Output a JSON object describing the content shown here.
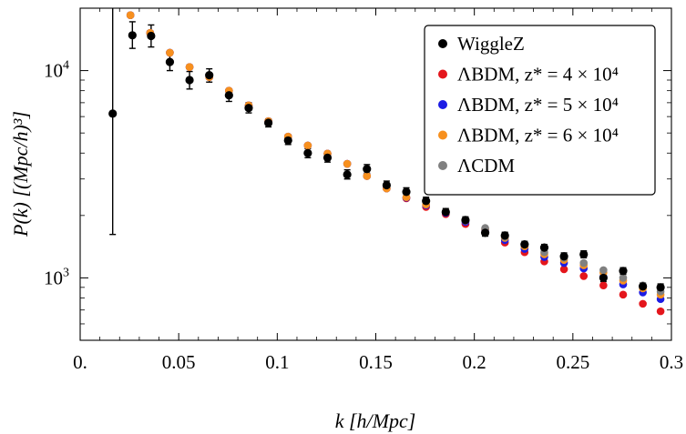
{
  "chart_data": {
    "type": "scatter",
    "xlabel": "k [h/Mpc]",
    "ylabel": "P(k) [(Mpc/h)³]",
    "y_scale": "log",
    "xlim": [
      0,
      0.3
    ],
    "ylim": [
      500,
      20000
    ],
    "grid": false,
    "legend_position": "top-right",
    "x_ticks": [
      {
        "value": 0,
        "label": "0."
      },
      {
        "value": 0.05,
        "label": "0.05"
      },
      {
        "value": 0.1,
        "label": "0.1"
      },
      {
        "value": 0.15,
        "label": "0.15"
      },
      {
        "value": 0.2,
        "label": "0.2"
      },
      {
        "value": 0.25,
        "label": "0.25"
      },
      {
        "value": 0.3,
        "label": "0.3"
      }
    ],
    "y_major_ticks": [
      {
        "value": 1000,
        "base": "10",
        "exp": "3"
      },
      {
        "value": 10000,
        "base": "10",
        "exp": "4"
      }
    ],
    "y_minor_ticks": [
      500,
      600,
      700,
      800,
      900,
      2000,
      3000,
      4000,
      5000,
      6000,
      7000,
      8000,
      9000
    ],
    "series": [
      {
        "name": "WiggleZ",
        "color": "#000000",
        "points": [
          {
            "x": 0.0165,
            "y": 6200,
            "ylo": 1620,
            "yhi": 20000
          },
          {
            "x": 0.0265,
            "y": 14800,
            "ylo": 12800,
            "yhi": 17200
          },
          {
            "x": 0.036,
            "y": 14700,
            "ylo": 13000,
            "yhi": 16600
          },
          {
            "x": 0.0455,
            "y": 11000,
            "ylo": 10000,
            "yhi": 12000
          },
          {
            "x": 0.0555,
            "y": 9000,
            "ylo": 8150,
            "yhi": 9900
          },
          {
            "x": 0.0655,
            "y": 9500,
            "ylo": 8800,
            "yhi": 10200
          },
          {
            "x": 0.0755,
            "y": 7600,
            "ylo": 7100,
            "yhi": 8100
          },
          {
            "x": 0.0855,
            "y": 6600,
            "ylo": 6250,
            "yhi": 7000
          },
          {
            "x": 0.0955,
            "y": 5600,
            "ylo": 5350,
            "yhi": 5850
          },
          {
            "x": 0.1055,
            "y": 4600,
            "ylo": 4400,
            "yhi": 4850
          },
          {
            "x": 0.1155,
            "y": 4000,
            "ylo": 3800,
            "yhi": 4200
          },
          {
            "x": 0.1255,
            "y": 3800,
            "ylo": 3620,
            "yhi": 3980
          },
          {
            "x": 0.1355,
            "y": 3150,
            "ylo": 3000,
            "yhi": 3320
          },
          {
            "x": 0.1455,
            "y": 3350,
            "ylo": 3200,
            "yhi": 3520
          },
          {
            "x": 0.1555,
            "y": 2800,
            "ylo": 2680,
            "yhi": 2930
          },
          {
            "x": 0.1655,
            "y": 2600,
            "ylo": 2490,
            "yhi": 2720
          },
          {
            "x": 0.1755,
            "y": 2350,
            "ylo": 2250,
            "yhi": 2450
          },
          {
            "x": 0.1855,
            "y": 2080,
            "ylo": 2000,
            "yhi": 2160
          },
          {
            "x": 0.1955,
            "y": 1900,
            "ylo": 1830,
            "yhi": 1970
          },
          {
            "x": 0.2055,
            "y": 1650,
            "ylo": 1590,
            "yhi": 1710
          },
          {
            "x": 0.2155,
            "y": 1600,
            "ylo": 1540,
            "yhi": 1660
          },
          {
            "x": 0.2255,
            "y": 1450,
            "ylo": 1400,
            "yhi": 1500
          },
          {
            "x": 0.2355,
            "y": 1400,
            "ylo": 1350,
            "yhi": 1450
          },
          {
            "x": 0.2455,
            "y": 1270,
            "ylo": 1220,
            "yhi": 1320
          },
          {
            "x": 0.2555,
            "y": 1300,
            "ylo": 1250,
            "yhi": 1350
          },
          {
            "x": 0.2655,
            "y": 1000,
            "ylo": 960,
            "yhi": 1040
          },
          {
            "x": 0.2755,
            "y": 1080,
            "ylo": 1040,
            "yhi": 1120
          },
          {
            "x": 0.2855,
            "y": 910,
            "ylo": 875,
            "yhi": 945
          },
          {
            "x": 0.2945,
            "y": 900,
            "ylo": 865,
            "yhi": 935
          }
        ]
      },
      {
        "name": "ΛBDM, z* = 4 × 10⁴",
        "color": "#e4161c",
        "x": [
          0.0255,
          0.0355,
          0.0455,
          0.0555,
          0.0655,
          0.0755,
          0.0855,
          0.0955,
          0.1055,
          0.1155,
          0.1255,
          0.1355,
          0.1455,
          0.1555,
          0.1655,
          0.1755,
          0.1855,
          0.1955,
          0.2055,
          0.2155,
          0.2255,
          0.2355,
          0.2455,
          0.2555,
          0.2655,
          0.2755,
          0.2855,
          0.2945
        ],
        "y": [
          18500,
          15200,
          12200,
          10400,
          9300,
          8000,
          6800,
          5700,
          4800,
          4350,
          3980,
          3550,
          3100,
          2700,
          2420,
          2200,
          2030,
          1820,
          1650,
          1480,
          1330,
          1200,
          1100,
          1020,
          920,
          830,
          750,
          690
        ]
      },
      {
        "name": "ΛBDM, z* = 5 × 10⁴",
        "color": "#1c1ce4",
        "x": [
          0.0255,
          0.0355,
          0.0455,
          0.0555,
          0.0655,
          0.0755,
          0.0855,
          0.0955,
          0.1055,
          0.1155,
          0.1255,
          0.1355,
          0.1455,
          0.1555,
          0.1655,
          0.1755,
          0.1855,
          0.1955,
          0.2055,
          0.2155,
          0.2255,
          0.2355,
          0.2455,
          0.2555,
          0.2655,
          0.2755,
          0.2855,
          0.2945
        ],
        "y": [
          18500,
          15200,
          12200,
          10400,
          9300,
          8000,
          6800,
          5700,
          4800,
          4350,
          3980,
          3550,
          3100,
          2700,
          2440,
          2240,
          2060,
          1860,
          1700,
          1520,
          1380,
          1260,
          1180,
          1110,
          1010,
          930,
          850,
          790
        ]
      },
      {
        "name": "ΛBDM, z* = 6 × 10⁴",
        "color": "#f7901e",
        "x": [
          0.0255,
          0.0355,
          0.0455,
          0.0555,
          0.0655,
          0.0755,
          0.0855,
          0.0955,
          0.1055,
          0.1155,
          0.1255,
          0.1355,
          0.1455,
          0.1555,
          0.1655,
          0.1755,
          0.1855,
          0.1955,
          0.2055,
          0.2155,
          0.2255,
          0.2355,
          0.2455,
          0.2555,
          0.2655,
          0.2755,
          0.2855,
          0.2945
        ],
        "y": [
          18500,
          15200,
          12200,
          10400,
          9300,
          8000,
          6800,
          5700,
          4800,
          4350,
          3980,
          3550,
          3100,
          2700,
          2450,
          2260,
          2080,
          1890,
          1720,
          1560,
          1420,
          1300,
          1220,
          1150,
          1060,
          970,
          890,
          830
        ]
      },
      {
        "name": "ΛCDM",
        "color": "#808080",
        "x": [
          0.2055,
          0.2155,
          0.2255,
          0.2355,
          0.2455,
          0.2555,
          0.2655,
          0.2755,
          0.2855,
          0.2945
        ],
        "y": [
          1740,
          1580,
          1450,
          1330,
          1250,
          1180,
          1090,
          1000,
          920,
          860
        ]
      }
    ]
  }
}
